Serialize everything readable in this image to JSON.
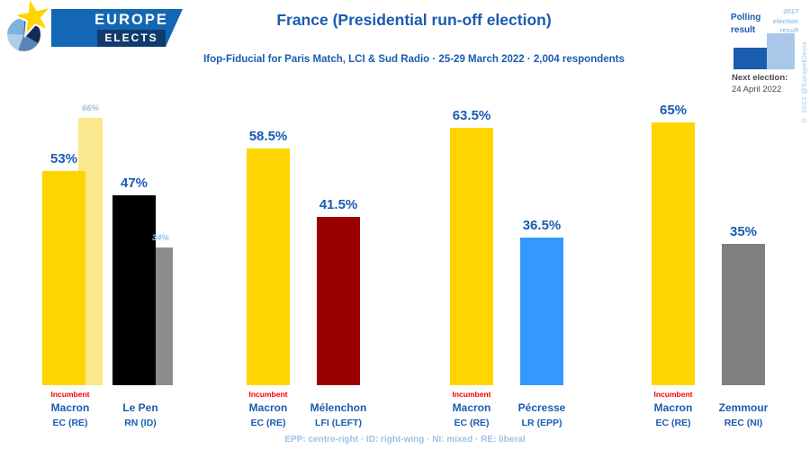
{
  "brand": {
    "logo_line1": "EUROPE",
    "logo_line2": "ELECTS",
    "copyright": "© 2022 @EuropeElects"
  },
  "header": {
    "title": "France (Presidential run-off election)",
    "subtitle": "Ifop-Fiducial for Paris Match, LCI & Sud Radio · 25-29 March 2022 · 2,004 respondents"
  },
  "legend": {
    "polling_label": "Polling result",
    "previous_label": "2017 election result",
    "next_election_label": "Next election:",
    "next_election_date": "24 April 2022"
  },
  "footnote": "EPP: centre-right · ID: right-wing · NI: mixed · RE: liberal",
  "colors": {
    "accent_blue": "#1A5CB0",
    "light_blue": "#9DC3E6",
    "incumbent_red": "#F40000",
    "macron_yellow": "#FFD500",
    "macron_2017_yellow": "#FBE78E",
    "lepen_black": "#000000",
    "lepen_2017_gray": "#8C8C8C",
    "melenchon_dark_red": "#9B0000",
    "pecresse_blue": "#3399FF",
    "zemmour_gray": "#7F7F7F"
  },
  "chart_data": {
    "type": "bar",
    "title": "France (Presidential run-off election)",
    "subtitle": "Ifop-Fiducial for Paris Match, LCI & Sud Radio · 25-29 March 2022 · 2,004 respondents",
    "unit": "%",
    "ylim": [
      0,
      70
    ],
    "grid": false,
    "legend_position": "top-right",
    "legend_entries": [
      "Polling result",
      "2017 election result"
    ],
    "incumbent_label": "Incumbent",
    "groups": [
      {
        "bars": [
          {
            "candidate": "Macron",
            "party": "EC (RE)",
            "incumbent": true,
            "value": 53,
            "label": "53%",
            "color": "#FFD500",
            "previous": {
              "value": 66,
              "label": "66%",
              "color": "#FBE78E"
            }
          },
          {
            "candidate": "Le Pen",
            "party": "RN (ID)",
            "incumbent": false,
            "value": 47,
            "label": "47%",
            "color": "#000000",
            "previous": {
              "value": 34,
              "label": "34%",
              "color": "#8C8C8C"
            }
          }
        ]
      },
      {
        "bars": [
          {
            "candidate": "Macron",
            "party": "EC (RE)",
            "incumbent": true,
            "value": 58.5,
            "label": "58.5%",
            "color": "#FFD500",
            "previous": null
          },
          {
            "candidate": "Mélenchon",
            "party": "LFI (LEFT)",
            "incumbent": false,
            "value": 41.5,
            "label": "41.5%",
            "color": "#9B0000",
            "previous": null
          }
        ]
      },
      {
        "bars": [
          {
            "candidate": "Macron",
            "party": "EC (RE)",
            "incumbent": true,
            "value": 63.5,
            "label": "63.5%",
            "color": "#FFD500",
            "previous": null
          },
          {
            "candidate": "Pécresse",
            "party": "LR (EPP)",
            "incumbent": false,
            "value": 36.5,
            "label": "36.5%",
            "color": "#3399FF",
            "previous": null
          }
        ]
      },
      {
        "bars": [
          {
            "candidate": "Macron",
            "party": "EC (RE)",
            "incumbent": true,
            "value": 65,
            "label": "65%",
            "color": "#FFD500",
            "previous": null
          },
          {
            "candidate": "Zemmour",
            "party": "REC (NI)",
            "incumbent": false,
            "value": 35,
            "label": "35%",
            "color": "#7F7F7F",
            "previous": null
          }
        ]
      }
    ]
  }
}
